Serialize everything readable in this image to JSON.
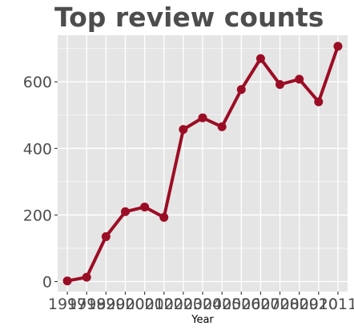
{
  "chart_data": {
    "type": "line",
    "title": "Top review counts",
    "xlabel": "Year",
    "ylabel": "",
    "x": [
      1997,
      1998,
      1999,
      2000,
      2001,
      2002,
      2003,
      2004,
      2005,
      2006,
      2007,
      2008,
      2009,
      2010,
      2011
    ],
    "x_tick_labels": [
      "1997",
      "1998",
      "1999",
      "2000",
      "2001",
      "2002",
      "2003",
      "2004",
      "2005",
      "2006",
      "2007",
      "2008",
      "2009",
      "2010",
      "2011"
    ],
    "values": [
      2,
      13,
      135,
      210,
      224,
      193,
      457,
      492,
      465,
      577,
      670,
      592,
      608,
      540,
      707
    ],
    "y_ticks": [
      0,
      200,
      400,
      600
    ],
    "xlim": [
      1996.5,
      2011.5
    ],
    "ylim": [
      -30,
      740
    ],
    "grid": true,
    "legend": "none",
    "colors": {
      "series": "#9b0d24",
      "panel": "#e5e5e5",
      "grid": "#ffffff",
      "text": "#4d4d4d"
    }
  }
}
